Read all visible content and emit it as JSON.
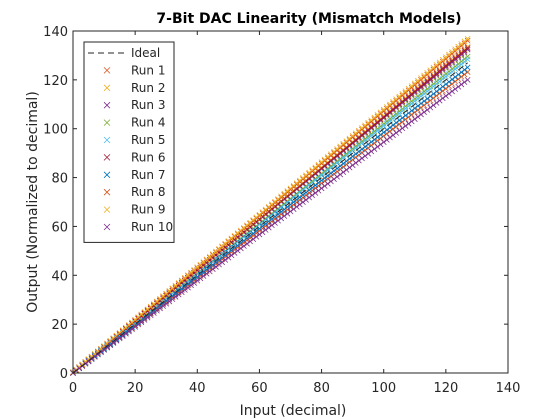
{
  "chart_data": {
    "type": "scatter",
    "title": "7-Bit DAC Linearity (Mismatch Models)",
    "xlabel": "Input (decimal)",
    "ylabel": "Output (Normalized to decimal)",
    "xlim": [
      0,
      140
    ],
    "ylim": [
      0,
      140
    ],
    "xticks": [
      0,
      20,
      40,
      60,
      80,
      100,
      120,
      140
    ],
    "yticks": [
      0,
      20,
      40,
      60,
      80,
      100,
      120,
      140
    ],
    "grid": false,
    "legend_position": "top-left",
    "x_domain": [
      0,
      127
    ],
    "ideal": {
      "name": "Ideal",
      "style": "dashed-line",
      "color": "#262626",
      "slope": 1
    },
    "series": [
      {
        "name": "Run 1",
        "marker": "x",
        "color": "#D95319",
        "slope": 0.97
      },
      {
        "name": "Run 2",
        "marker": "x",
        "color": "#EDB120",
        "slope": 1.05
      },
      {
        "name": "Run 3",
        "marker": "x",
        "color": "#7E2F8E",
        "slope": 1.04
      },
      {
        "name": "Run 4",
        "marker": "x",
        "color": "#77AC30",
        "slope": 1.02
      },
      {
        "name": "Run 5",
        "marker": "x",
        "color": "#4DBEEE",
        "slope": 1.01
      },
      {
        "name": "Run 6",
        "marker": "x",
        "color": "#A2142F",
        "slope": 1.045
      },
      {
        "name": "Run 7",
        "marker": "x",
        "color": "#0072BD",
        "slope": 0.985
      },
      {
        "name": "Run 8",
        "marker": "x",
        "color": "#D95319",
        "slope": 1.07
      },
      {
        "name": "Run 9",
        "marker": "x",
        "color": "#EDB120",
        "slope": 1.075
      },
      {
        "name": "Run 10",
        "marker": "x",
        "color": "#7E2F8E",
        "slope": 0.945
      }
    ]
  }
}
